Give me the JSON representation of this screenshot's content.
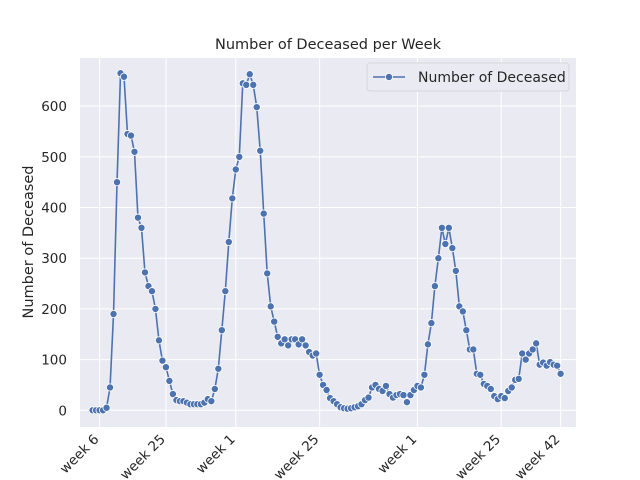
{
  "chart_data": {
    "type": "line",
    "title": "Number of Deceased per Week",
    "xlabel": "",
    "ylabel": "Number of Deceased",
    "x_ticks": [
      {
        "label": "week 6",
        "x": 2
      },
      {
        "label": "week 25",
        "x": 21
      },
      {
        "label": "week 1",
        "x": 41
      },
      {
        "label": "week 25",
        "x": 65
      },
      {
        "label": "week 1",
        "x": 93
      },
      {
        "label": "week 25",
        "x": 117
      },
      {
        "label": "week 42",
        "x": 134
      }
    ],
    "y_ticks": [
      0,
      100,
      200,
      300,
      400,
      500,
      600
    ],
    "xlim": [
      -3.6,
      138.4
    ],
    "ylim": [
      -33,
      695
    ],
    "grid": true,
    "legend": {
      "position": "top-right",
      "entries": [
        "Number of Deceased"
      ]
    },
    "series": [
      {
        "name": "Number of Deceased",
        "color": "#4c72b0",
        "x": [
          0,
          1,
          2,
          3,
          4,
          5,
          6,
          7,
          8,
          9,
          10,
          11,
          12,
          13,
          14,
          15,
          16,
          17,
          18,
          19,
          20,
          21,
          22,
          23,
          24,
          25,
          26,
          27,
          28,
          29,
          30,
          31,
          32,
          33,
          34,
          35,
          36,
          37,
          38,
          39,
          40,
          41,
          42,
          43,
          44,
          45,
          46,
          47,
          48,
          49,
          50,
          51,
          52,
          53,
          54,
          55,
          56,
          57,
          58,
          59,
          60,
          61,
          62,
          63,
          64,
          65,
          66,
          67,
          68,
          69,
          70,
          71,
          72,
          73,
          74,
          75,
          76,
          77,
          78,
          79,
          80,
          81,
          82,
          83,
          84,
          85,
          86,
          87,
          88,
          89,
          90,
          91,
          92,
          93,
          94,
          95,
          96,
          97,
          98,
          99,
          100,
          101,
          102,
          103,
          104,
          105,
          106,
          107,
          108,
          109,
          110,
          111,
          112,
          113,
          114,
          115,
          116,
          117,
          118,
          119,
          120,
          121,
          122,
          123,
          124,
          125,
          126,
          127,
          128,
          129,
          130,
          131,
          132,
          133,
          134
        ],
        "values": [
          0,
          0,
          0,
          0,
          5,
          45,
          190,
          450,
          665,
          658,
          545,
          542,
          510,
          380,
          360,
          272,
          245,
          235,
          200,
          138,
          98,
          85,
          58,
          32,
          20,
          18,
          18,
          15,
          12,
          12,
          12,
          12,
          15,
          22,
          18,
          42,
          82,
          158,
          235,
          332,
          418,
          475,
          500,
          645,
          642,
          663,
          642,
          598,
          512,
          388,
          270,
          205,
          175,
          145,
          132,
          140,
          128,
          140,
          140,
          130,
          140,
          128,
          115,
          108,
          112,
          70,
          50,
          40,
          24,
          18,
          12,
          6,
          4,
          3,
          4,
          6,
          8,
          12,
          20,
          25,
          45,
          50,
          42,
          38,
          48,
          32,
          25,
          30,
          32,
          30,
          16,
          30,
          40,
          48,
          45,
          70,
          130,
          172,
          245,
          300,
          360,
          328,
          360,
          320,
          275,
          205,
          195,
          158,
          120,
          120,
          72,
          70,
          52,
          48,
          42,
          28,
          22,
          28,
          24,
          38,
          45,
          60,
          62,
          112,
          100,
          112,
          120,
          132,
          90,
          94,
          88,
          95,
          90,
          88,
          72
        ]
      }
    ]
  }
}
